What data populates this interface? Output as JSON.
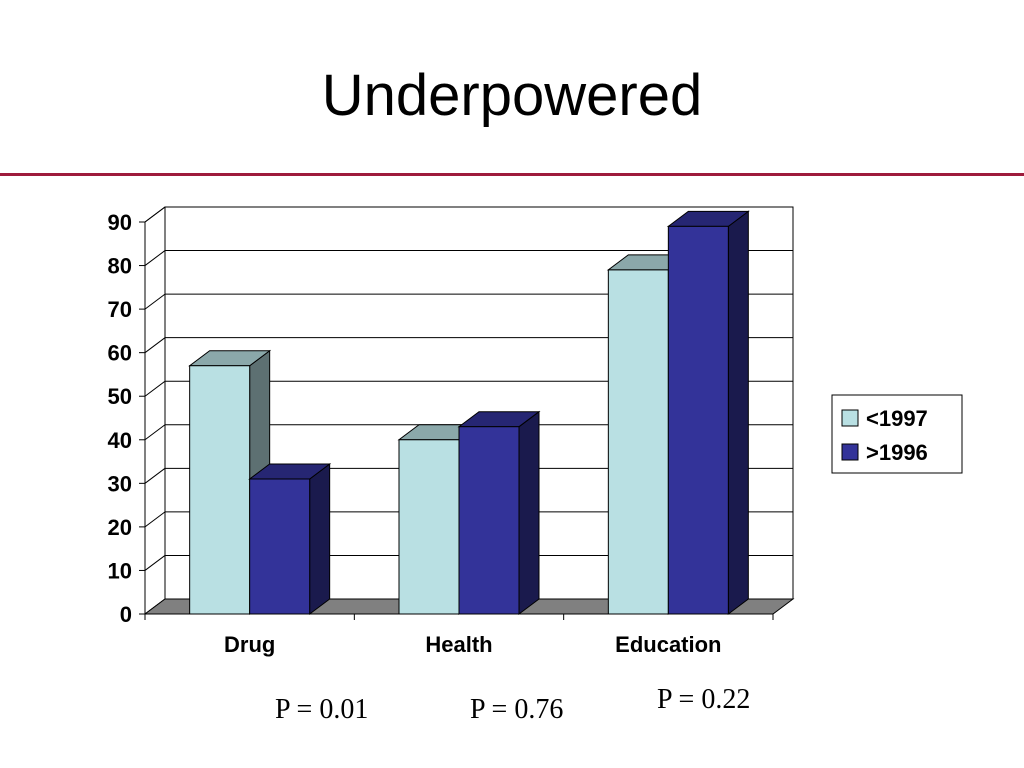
{
  "slide": {
    "title": "Underpowered",
    "rule_color": "#9e1b3c"
  },
  "chart_data": {
    "type": "bar",
    "style": "3d-clustered-column",
    "categories": [
      "Drug",
      "Health",
      "Education"
    ],
    "series": [
      {
        "name": "<1997",
        "values": [
          57,
          40,
          79
        ],
        "color": "#b9e0e3"
      },
      {
        "name": ">1996",
        "values": [
          31,
          43,
          89
        ],
        "color": "#333399"
      }
    ],
    "ylim": [
      0,
      90
    ],
    "yticks": [
      "0",
      "10",
      "20",
      "30",
      "40",
      "50",
      "60",
      "70",
      "80",
      "90"
    ],
    "grid": true,
    "legend_position": "right",
    "floor_color": "#808080"
  },
  "annotations": {
    "p_values": [
      "P = 0.01",
      "P = 0.76",
      "P = 0.22"
    ]
  }
}
